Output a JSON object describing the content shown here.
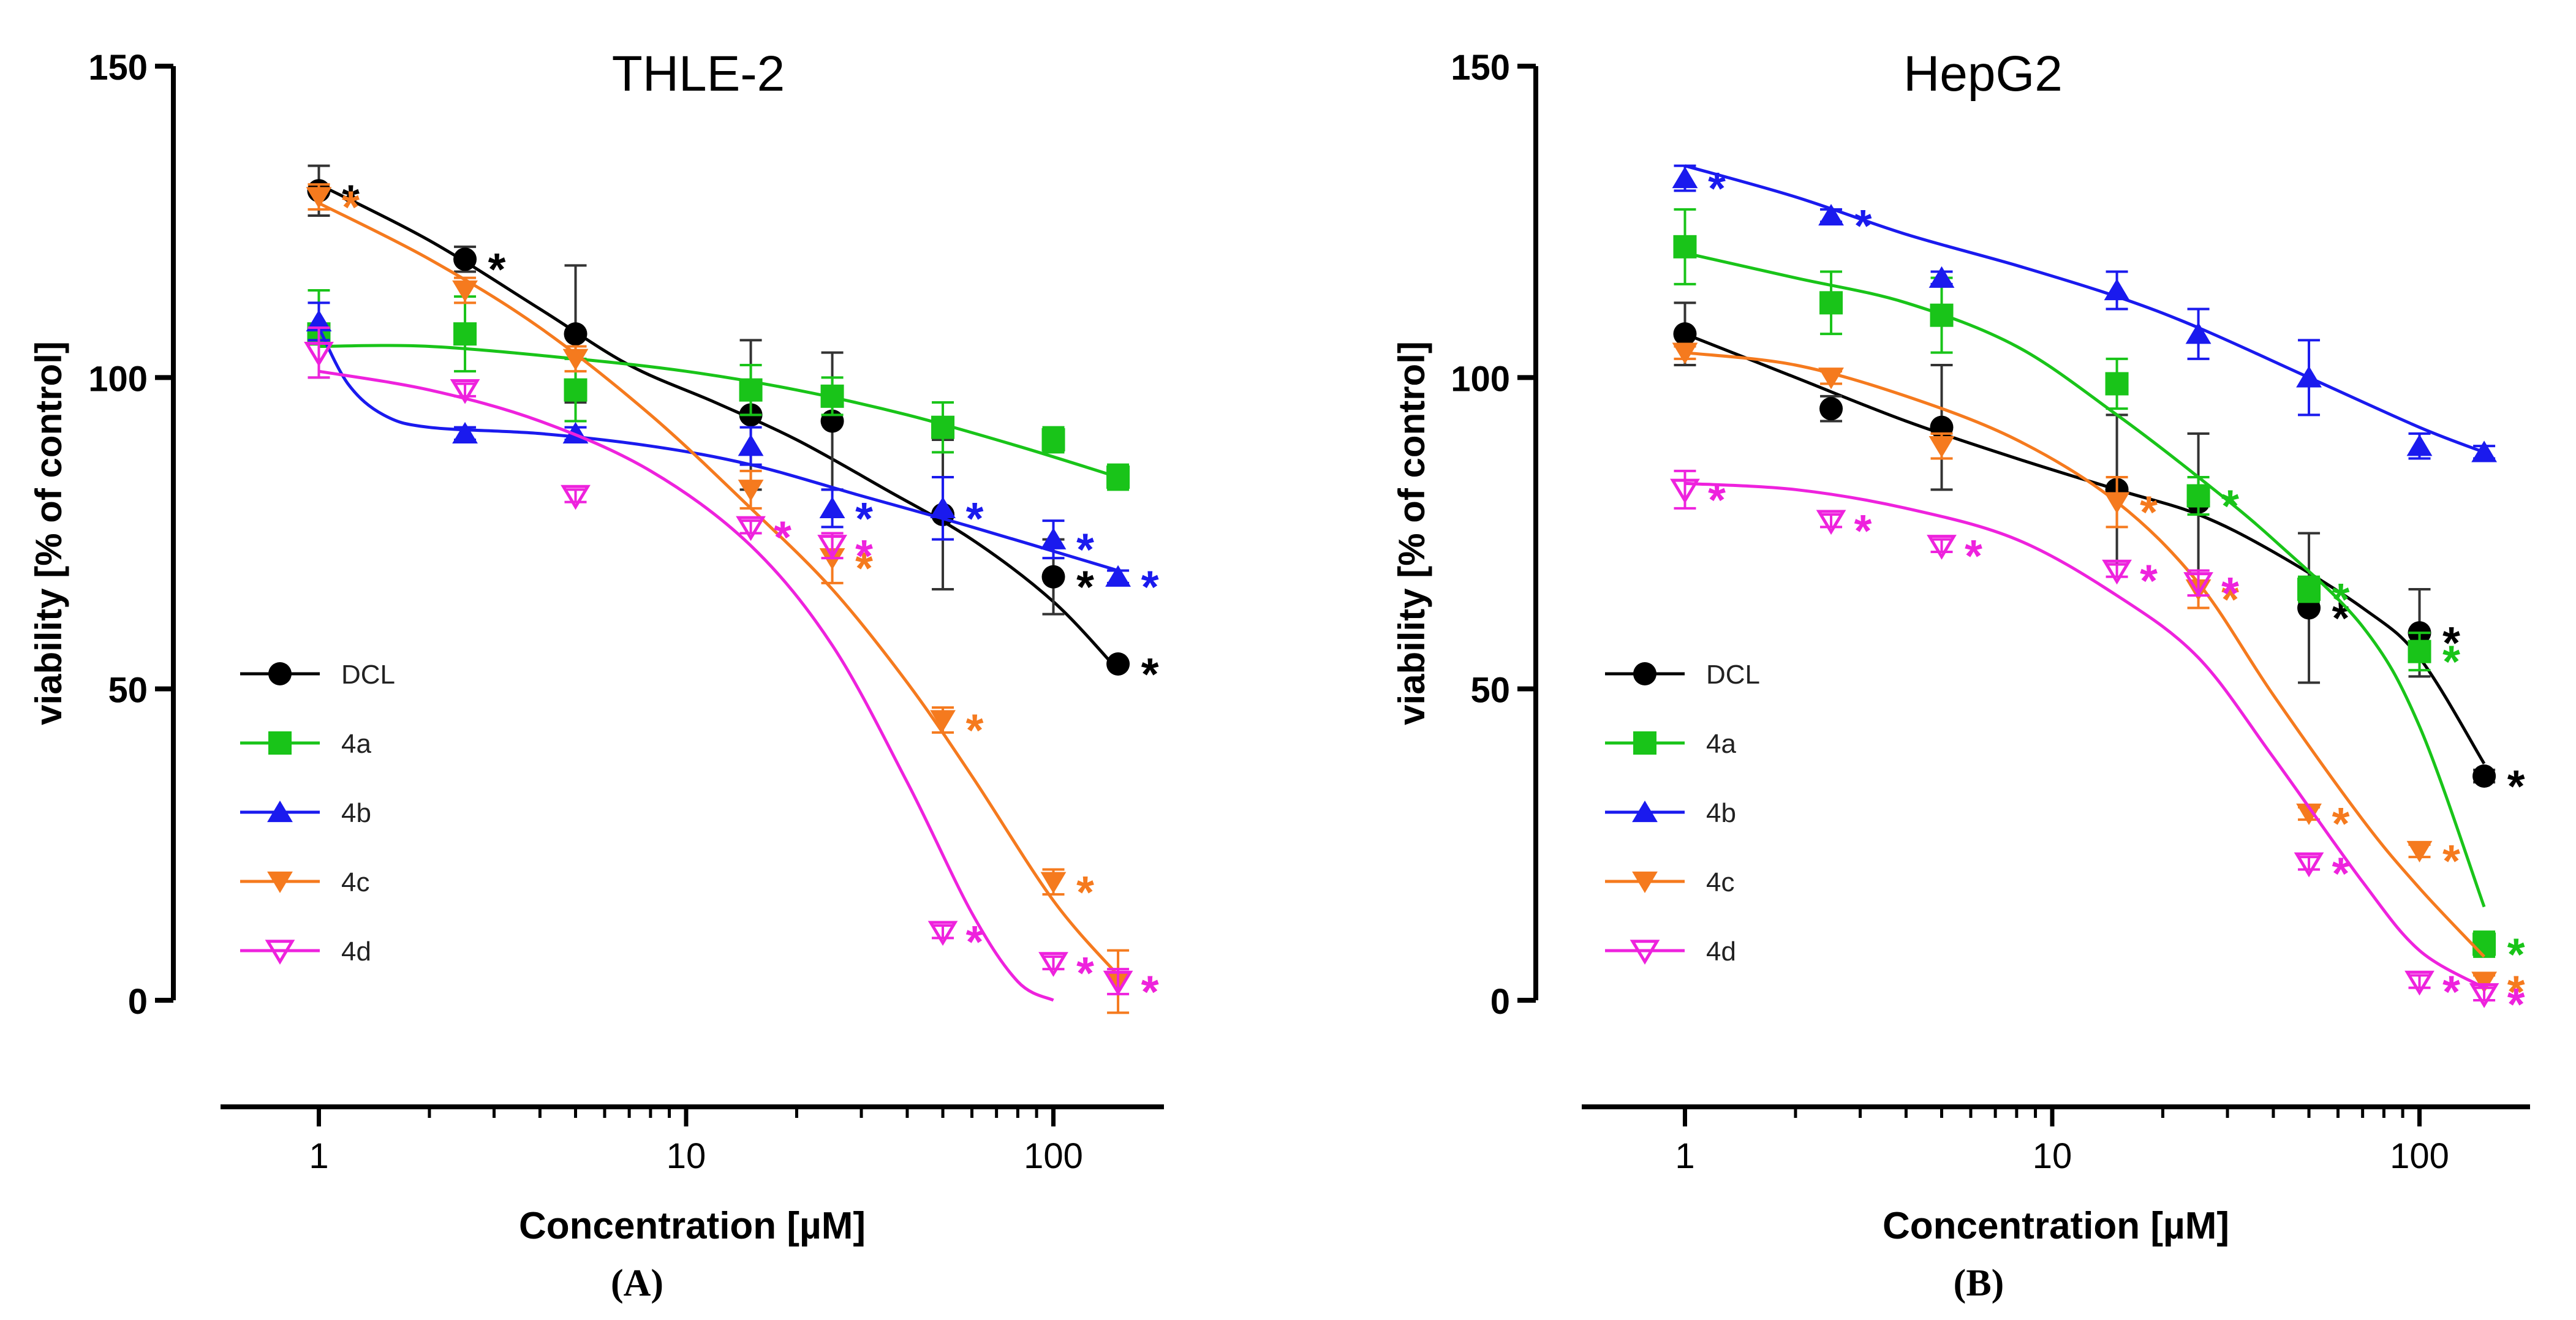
{
  "panel_letters": [
    "(A)",
    "(B)"
  ],
  "series_meta": [
    {
      "key": "DCL",
      "name": "DCL",
      "color": "#000000",
      "marker": "circle"
    },
    {
      "key": "4a",
      "name": "4a",
      "color": "#19c419",
      "marker": "square"
    },
    {
      "key": "4b",
      "name": "4b",
      "color": "#1a1aee",
      "marker": "triangle-up"
    },
    {
      "key": "4c",
      "name": "4c",
      "color": "#f57a1e",
      "marker": "triangle-down"
    },
    {
      "key": "4d",
      "name": "4d",
      "color": "#ee22dd",
      "marker": "triangle-down-open"
    }
  ],
  "chart_data": [
    {
      "type": "scatter",
      "title": "THLE-2",
      "xlabel": "Concentration [µM]",
      "ylabel": "viability  [% of control]",
      "xscale": "log",
      "xlim": [
        0.5,
        200
      ],
      "ylim": [
        0,
        150
      ],
      "xticks": [
        1,
        10,
        100
      ],
      "xtick_labels": [
        "1",
        "10",
        "100"
      ],
      "yticks": [
        0,
        50,
        100,
        150
      ],
      "ytick_labels": [
        "0",
        "50",
        "100",
        "150"
      ],
      "legend": {
        "position": "lower-left",
        "entries": [
          "DCL",
          "4a",
          "4b",
          "4c",
          "4d"
        ]
      },
      "significance_marker": "*",
      "series": [
        {
          "name": "DCL",
          "x": [
            1,
            2.5,
            5,
            15,
            25,
            50,
            100,
            150
          ],
          "values": [
            130,
            119,
            107,
            94,
            93,
            78,
            68,
            54
          ],
          "errors": [
            4,
            2,
            11,
            12,
            11,
            12,
            6,
            0
          ],
          "fit": [
            [
              1,
              131
            ],
            [
              2,
              122
            ],
            [
              4,
              111
            ],
            [
              7,
              102
            ],
            [
              12,
              96
            ],
            [
              20,
              90
            ],
            [
              35,
              82
            ],
            [
              60,
              74
            ],
            [
              100,
              64
            ],
            [
              150,
              53
            ]
          ],
          "significant": [
            1,
            1,
            0,
            0,
            0,
            0,
            1,
            1
          ]
        },
        {
          "name": "4a",
          "x": [
            1,
            2.5,
            5,
            15,
            25,
            50,
            100,
            150
          ],
          "values": [
            107,
            107,
            98,
            98,
            97,
            92,
            90,
            84
          ],
          "errors": [
            7,
            6,
            5,
            4,
            3,
            4,
            2,
            2
          ],
          "fit": [
            [
              1,
              105
            ],
            [
              2,
              105
            ],
            [
              5,
              103
            ],
            [
              10,
              101
            ],
            [
              20,
              98
            ],
            [
              40,
              94
            ],
            [
              80,
              89
            ],
            [
              150,
              84
            ]
          ],
          "significant": [
            0,
            0,
            0,
            0,
            0,
            0,
            0,
            0
          ]
        },
        {
          "name": "4b",
          "x": [
            1,
            2.5,
            5,
            15,
            25,
            50,
            100,
            150
          ],
          "values": [
            109,
            91,
            91,
            89,
            79,
            79,
            74,
            68
          ],
          "errors": [
            3,
            1,
            1,
            3,
            3,
            5,
            3,
            1
          ],
          "fit": [
            [
              1,
              108
            ],
            [
              1.2,
              99
            ],
            [
              1.5,
              94
            ],
            [
              2,
              92
            ],
            [
              4,
              91
            ],
            [
              8,
              89
            ],
            [
              15,
              86
            ],
            [
              30,
              81
            ],
            [
              60,
              76
            ],
            [
              150,
              69
            ]
          ],
          "significant": [
            0,
            0,
            0,
            0,
            1,
            1,
            1,
            1
          ]
        },
        {
          "name": "4c",
          "x": [
            1,
            2.5,
            5,
            15,
            25,
            50,
            100,
            150
          ],
          "values": [
            129,
            114,
            103,
            82,
            71,
            45,
            19,
            3
          ],
          "errors": [
            2,
            2,
            2,
            3,
            4,
            2,
            2,
            5
          ],
          "fit": [
            [
              1,
              128
            ],
            [
              2,
              119
            ],
            [
              4,
              108
            ],
            [
              8,
              94
            ],
            [
              15,
              79
            ],
            [
              25,
              66
            ],
            [
              40,
              51
            ],
            [
              60,
              36
            ],
            [
              100,
              16
            ],
            [
              150,
              4
            ]
          ],
          "significant": [
            1,
            0,
            0,
            0,
            1,
            1,
            1,
            1
          ]
        },
        {
          "name": "4d",
          "x": [
            1,
            2.5,
            5,
            15,
            25,
            50,
            100,
            150
          ],
          "values": [
            104,
            98,
            81,
            76,
            73,
            11,
            6,
            3
          ],
          "errors": [
            4,
            1,
            1,
            1,
            2,
            1,
            1,
            2
          ],
          "fit": [
            [
              1,
              101
            ],
            [
              2,
              98
            ],
            [
              4,
              93
            ],
            [
              8,
              85
            ],
            [
              15,
              73
            ],
            [
              25,
              57
            ],
            [
              40,
              35
            ],
            [
              60,
              14
            ],
            [
              80,
              3
            ],
            [
              100,
              0
            ]
          ],
          "significant": [
            0,
            0,
            0,
            1,
            1,
            1,
            1,
            1
          ]
        }
      ]
    },
    {
      "type": "scatter",
      "title": "HepG2",
      "xlabel": "Concentration [µM]",
      "ylabel": "viability  [% of control]",
      "xscale": "log",
      "xlim": [
        0.5,
        200
      ],
      "ylim": [
        0,
        150
      ],
      "xticks": [
        1,
        10,
        100
      ],
      "xtick_labels": [
        "1",
        "10",
        "100"
      ],
      "yticks": [
        0,
        50,
        100,
        150
      ],
      "ytick_labels": [
        "0",
        "50",
        "100",
        "150"
      ],
      "legend": {
        "position": "lower-left",
        "entries": [
          "DCL",
          "4a",
          "4b",
          "4c",
          "4d"
        ]
      },
      "significance_marker": "*",
      "series": [
        {
          "name": "DCL",
          "x": [
            1,
            2.5,
            5,
            15,
            25,
            50,
            100,
            150
          ],
          "values": [
            107,
            95,
            92,
            82,
            80,
            63,
            59,
            36
          ],
          "errors": [
            5,
            2,
            10,
            12,
            11,
            12,
            7,
            1
          ],
          "fit": [
            [
              1,
              107
            ],
            [
              2,
              100
            ],
            [
              4,
              93
            ],
            [
              8,
              87
            ],
            [
              15,
              82
            ],
            [
              25,
              78
            ],
            [
              40,
              72
            ],
            [
              70,
              63
            ],
            [
              100,
              55
            ],
            [
              150,
              38
            ]
          ],
          "significant": [
            0,
            0,
            0,
            0,
            0,
            1,
            1,
            1
          ]
        },
        {
          "name": "4a",
          "x": [
            1,
            2.5,
            5,
            15,
            25,
            50,
            100,
            150
          ],
          "values": [
            121,
            112,
            110,
            99,
            81,
            66,
            56,
            9
          ],
          "errors": [
            6,
            5,
            6,
            4,
            3,
            2,
            3,
            2
          ],
          "fit": [
            [
              1,
              120
            ],
            [
              2,
              116
            ],
            [
              4,
              112
            ],
            [
              8,
              105
            ],
            [
              15,
              94
            ],
            [
              25,
              84
            ],
            [
              40,
              74
            ],
            [
              70,
              60
            ],
            [
              100,
              44
            ],
            [
              150,
              15
            ]
          ],
          "significant": [
            0,
            0,
            0,
            0,
            1,
            1,
            1,
            1
          ]
        },
        {
          "name": "4b",
          "x": [
            1,
            2.5,
            5,
            15,
            25,
            50,
            100,
            150
          ],
          "values": [
            132,
            126,
            116,
            114,
            107,
            100,
            89,
            88
          ],
          "errors": [
            2,
            1,
            1,
            3,
            4,
            6,
            2,
            1
          ],
          "fit": [
            [
              1,
              134
            ],
            [
              2,
              129
            ],
            [
              4,
              123
            ],
            [
              8,
              118
            ],
            [
              15,
              113
            ],
            [
              25,
              108
            ],
            [
              50,
              100
            ],
            [
              100,
              92
            ],
            [
              150,
              88
            ]
          ],
          "significant": [
            1,
            1,
            0,
            0,
            0,
            0,
            0,
            0
          ]
        },
        {
          "name": "4c",
          "x": [
            1,
            2.5,
            5,
            15,
            25,
            50,
            100,
            150
          ],
          "values": [
            104,
            100,
            89,
            80,
            66,
            30,
            24,
            3
          ],
          "errors": [
            1,
            1,
            2,
            4,
            3,
            1,
            1,
            1
          ],
          "fit": [
            [
              1,
              104
            ],
            [
              2,
              102
            ],
            [
              4,
              97
            ],
            [
              8,
              90
            ],
            [
              15,
              80
            ],
            [
              25,
              67
            ],
            [
              40,
              49
            ],
            [
              70,
              29
            ],
            [
              100,
              18
            ],
            [
              150,
              7
            ]
          ],
          "significant": [
            0,
            0,
            0,
            1,
            1,
            1,
            1,
            1
          ]
        },
        {
          "name": "4d",
          "x": [
            1,
            2.5,
            5,
            15,
            25,
            50,
            100,
            150
          ],
          "values": [
            82,
            77,
            73,
            69,
            67,
            22,
            3,
            1
          ],
          "errors": [
            3,
            1,
            1,
            1,
            2,
            1,
            1,
            1
          ],
          "fit": [
            [
              1,
              83
            ],
            [
              2,
              82
            ],
            [
              4,
              79
            ],
            [
              8,
              74
            ],
            [
              15,
              65
            ],
            [
              25,
              55
            ],
            [
              40,
              39
            ],
            [
              70,
              19
            ],
            [
              100,
              8
            ],
            [
              150,
              2
            ]
          ],
          "significant": [
            1,
            1,
            1,
            1,
            1,
            1,
            1,
            1
          ]
        }
      ]
    }
  ]
}
